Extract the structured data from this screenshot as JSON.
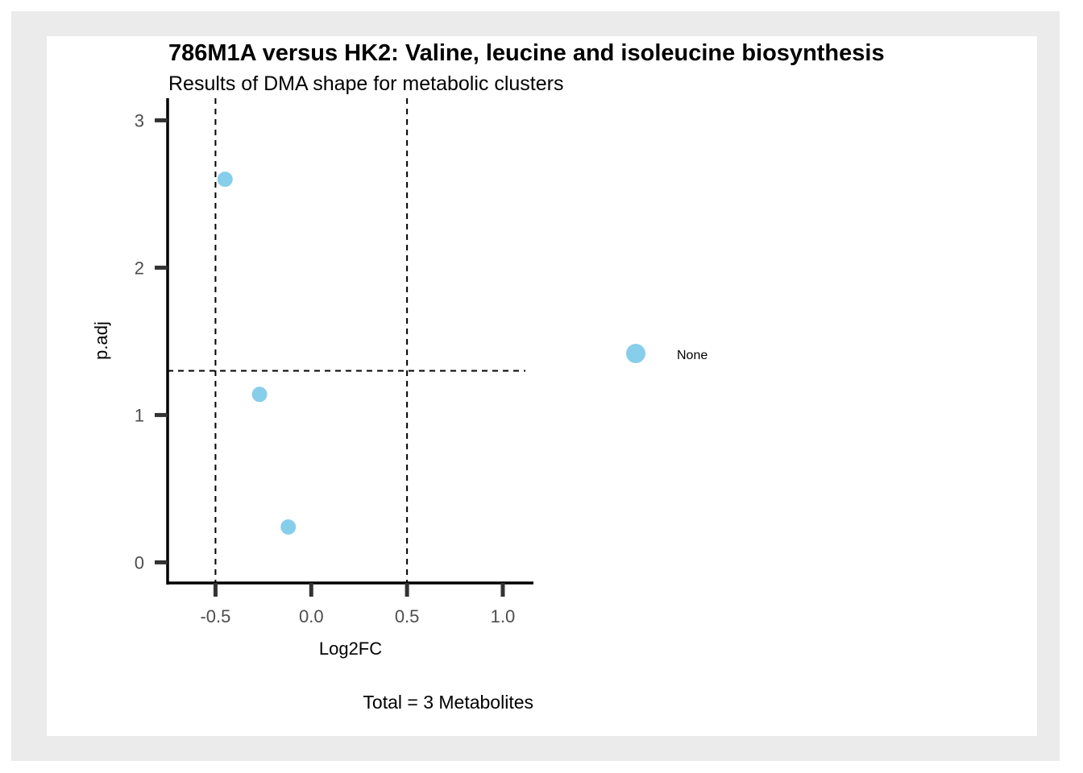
{
  "chart_data": {
    "type": "scatter",
    "title": "786M1A versus HK2: Valine, leucine and isoleucine biosynthesis",
    "subtitle": "Results of DMA shape for metabolic clusters",
    "xlabel": "Log2FC",
    "ylabel": "p.adj",
    "caption": "Total = 3 Metabolites",
    "xlim": [
      -0.75,
      1.16
    ],
    "ylim": [
      -0.14,
      3.15
    ],
    "x_ticks": [
      {
        "value": -0.5,
        "label": "-0.5"
      },
      {
        "value": 0.0,
        "label": "0.0"
      },
      {
        "value": 0.5,
        "label": "0.5"
      },
      {
        "value": 1.0,
        "label": "1.0"
      }
    ],
    "y_ticks": [
      {
        "value": 0,
        "label": "0"
      },
      {
        "value": 1,
        "label": "1"
      },
      {
        "value": 2,
        "label": "2"
      },
      {
        "value": 3,
        "label": "3"
      }
    ],
    "vlines": [
      -0.5,
      0.5
    ],
    "hlines": [
      1.3
    ],
    "grid": false,
    "legend_position": "right",
    "series": [
      {
        "name": "None",
        "color": "#87CEEB",
        "points": [
          {
            "x": -0.45,
            "y": 2.6
          },
          {
            "x": -0.27,
            "y": 1.14
          },
          {
            "x": -0.12,
            "y": 0.24
          }
        ]
      }
    ]
  }
}
